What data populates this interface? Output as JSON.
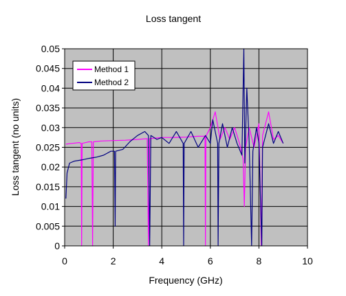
{
  "chart_data": {
    "type": "line",
    "title": "Loss tangent",
    "xlabel": "Frequency (GHz)",
    "ylabel": "Loss tangent (no units)",
    "xlim": [
      0,
      10
    ],
    "ylim": [
      0,
      0.05
    ],
    "x_ticks": [
      "0",
      "2",
      "4",
      "6",
      "8",
      "10"
    ],
    "y_ticks": [
      "0",
      "0.005",
      "0.01",
      "0.015",
      "0.02",
      "0.025",
      "0.03",
      "0.035",
      "0.04",
      "0.045",
      "0.05"
    ],
    "grid": true,
    "legend_position": "top-left",
    "plot_background": "#c0c0c0",
    "series": [
      {
        "name": "Method 1",
        "color": "#ff00ff",
        "points": [
          [
            0.05,
            0.0258
          ],
          [
            0.3,
            0.026
          ],
          [
            0.6,
            0.0262
          ],
          [
            0.68,
            0.026
          ],
          [
            0.7,
            0.0
          ],
          [
            0.72,
            0.026
          ],
          [
            1.0,
            0.0264
          ],
          [
            1.12,
            0.0264
          ],
          [
            1.15,
            0.0
          ],
          [
            1.18,
            0.0264
          ],
          [
            1.5,
            0.0266
          ],
          [
            2.0,
            0.0267
          ],
          [
            2.5,
            0.0268
          ],
          [
            3.0,
            0.027
          ],
          [
            3.4,
            0.0272
          ],
          [
            3.45,
            0.0
          ],
          [
            3.5,
            0.0272
          ],
          [
            4.0,
            0.0275
          ],
          [
            4.5,
            0.0275
          ],
          [
            5.0,
            0.0276
          ],
          [
            5.5,
            0.0278
          ],
          [
            5.78,
            0.0278
          ],
          [
            5.8,
            0.0
          ],
          [
            5.82,
            0.0278
          ],
          [
            6.0,
            0.03
          ],
          [
            6.2,
            0.034
          ],
          [
            6.4,
            0.027
          ],
          [
            6.6,
            0.03
          ],
          [
            6.8,
            0.027
          ],
          [
            7.0,
            0.03
          ],
          [
            7.2,
            0.026
          ],
          [
            7.35,
            0.022
          ],
          [
            7.4,
            0.01
          ],
          [
            7.45,
            0.025
          ],
          [
            7.6,
            0.03
          ],
          [
            7.8,
            0.025
          ],
          [
            8.0,
            0.031
          ],
          [
            8.1,
            0.0
          ],
          [
            8.15,
            0.028
          ],
          [
            8.4,
            0.034
          ],
          [
            8.6,
            0.027
          ],
          [
            8.8,
            0.028
          ],
          [
            9.0,
            0.026
          ]
        ]
      },
      {
        "name": "Method 2",
        "color": "#000080",
        "points": [
          [
            0.05,
            0.012
          ],
          [
            0.1,
            0.0185
          ],
          [
            0.2,
            0.021
          ],
          [
            0.4,
            0.0215
          ],
          [
            0.7,
            0.0218
          ],
          [
            1.0,
            0.0222
          ],
          [
            1.3,
            0.0225
          ],
          [
            1.6,
            0.023
          ],
          [
            1.9,
            0.024
          ],
          [
            2.05,
            0.024
          ],
          [
            2.08,
            0.005
          ],
          [
            2.1,
            0.024
          ],
          [
            2.4,
            0.0245
          ],
          [
            2.7,
            0.0265
          ],
          [
            3.0,
            0.028
          ],
          [
            3.3,
            0.029
          ],
          [
            3.45,
            0.028
          ],
          [
            3.5,
            0.0
          ],
          [
            3.55,
            0.028
          ],
          [
            3.8,
            0.027
          ],
          [
            4.0,
            0.0275
          ],
          [
            4.3,
            0.026
          ],
          [
            4.6,
            0.029
          ],
          [
            4.88,
            0.026
          ],
          [
            4.9,
            0.0
          ],
          [
            4.92,
            0.026
          ],
          [
            5.2,
            0.029
          ],
          [
            5.5,
            0.025
          ],
          [
            5.8,
            0.028
          ],
          [
            6.0,
            0.026
          ],
          [
            6.1,
            0.032
          ],
          [
            6.3,
            0.026
          ],
          [
            6.32,
            0.0
          ],
          [
            6.35,
            0.026
          ],
          [
            6.5,
            0.031
          ],
          [
            6.7,
            0.025
          ],
          [
            6.9,
            0.03
          ],
          [
            7.1,
            0.026
          ],
          [
            7.3,
            0.023
          ],
          [
            7.38,
            0.05
          ],
          [
            7.42,
            0.021
          ],
          [
            7.5,
            0.04
          ],
          [
            7.6,
            0.026
          ],
          [
            7.7,
            0.0
          ],
          [
            7.75,
            0.024
          ],
          [
            7.9,
            0.03
          ],
          [
            8.0,
            0.026
          ],
          [
            8.12,
            0.0
          ],
          [
            8.15,
            0.025
          ],
          [
            8.4,
            0.031
          ],
          [
            8.6,
            0.026
          ],
          [
            8.8,
            0.029
          ],
          [
            9.0,
            0.026
          ]
        ]
      }
    ]
  }
}
